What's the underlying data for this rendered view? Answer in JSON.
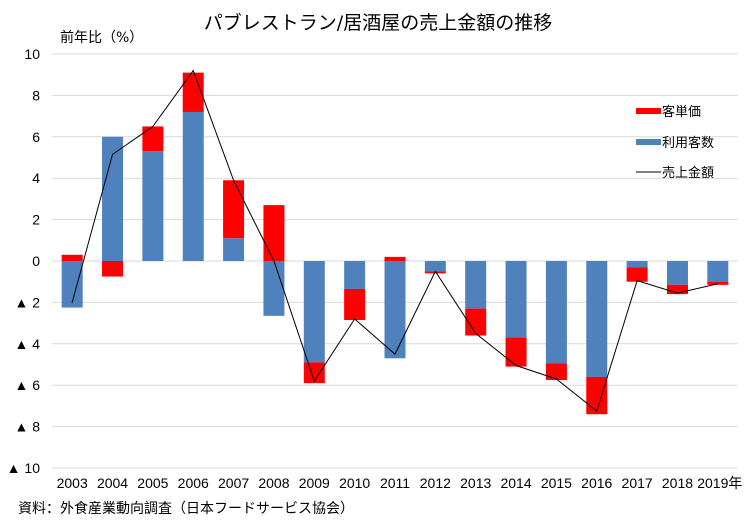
{
  "chart_data": {
    "type": "bar",
    "stacked": true,
    "title": "パブレストラン/居酒屋の売上金額の推移",
    "ylabel": "前年比（%）",
    "xlabel": "",
    "ylim": [
      -10,
      10
    ],
    "yticks": [
      10,
      8,
      6,
      4,
      2,
      0,
      -2,
      -4,
      -6,
      -8,
      -10
    ],
    "ytick_labels": [
      "10",
      "8",
      "6",
      "4",
      "2",
      "0",
      "▲ 2",
      "▲ 4",
      "▲ 6",
      "▲ 8",
      "▲ 10"
    ],
    "grid": true,
    "legend_position": "top-right",
    "categories": [
      "2003",
      "2004",
      "2005",
      "2006",
      "2007",
      "2008",
      "2009",
      "2010",
      "2011",
      "2012",
      "2013",
      "2014",
      "2015",
      "2016",
      "2017",
      "2018",
      "2019年"
    ],
    "series": [
      {
        "name": "利用客数",
        "type": "bar",
        "color": "#4f81bd",
        "values": [
          -2.25,
          6.0,
          5.3,
          7.2,
          1.1,
          -2.65,
          -4.9,
          -1.35,
          -4.7,
          -0.5,
          -2.3,
          -3.7,
          -4.95,
          -5.6,
          -0.3,
          -1.15,
          -1.0
        ]
      },
      {
        "name": "客単価",
        "type": "bar",
        "color": "#ff0000",
        "values": [
          0.3,
          -0.75,
          1.2,
          1.9,
          2.8,
          2.7,
          -1.0,
          -1.5,
          0.2,
          -0.1,
          -1.3,
          -1.4,
          -0.8,
          -1.8,
          -0.7,
          -0.45,
          -0.15
        ]
      },
      {
        "name": "売上金額",
        "type": "line",
        "color": "#000000",
        "values": [
          -2.0,
          5.15,
          6.5,
          9.2,
          3.9,
          0.0,
          -5.8,
          -2.8,
          -4.5,
          -0.5,
          -3.5,
          -5.05,
          -5.7,
          -7.25,
          -0.95,
          -1.55,
          -1.1
        ]
      }
    ],
    "legend": [
      "客単価",
      "利用客数",
      "売上金額"
    ]
  },
  "source": "資料：外食産業動向調査（日本フードサービス協会）"
}
